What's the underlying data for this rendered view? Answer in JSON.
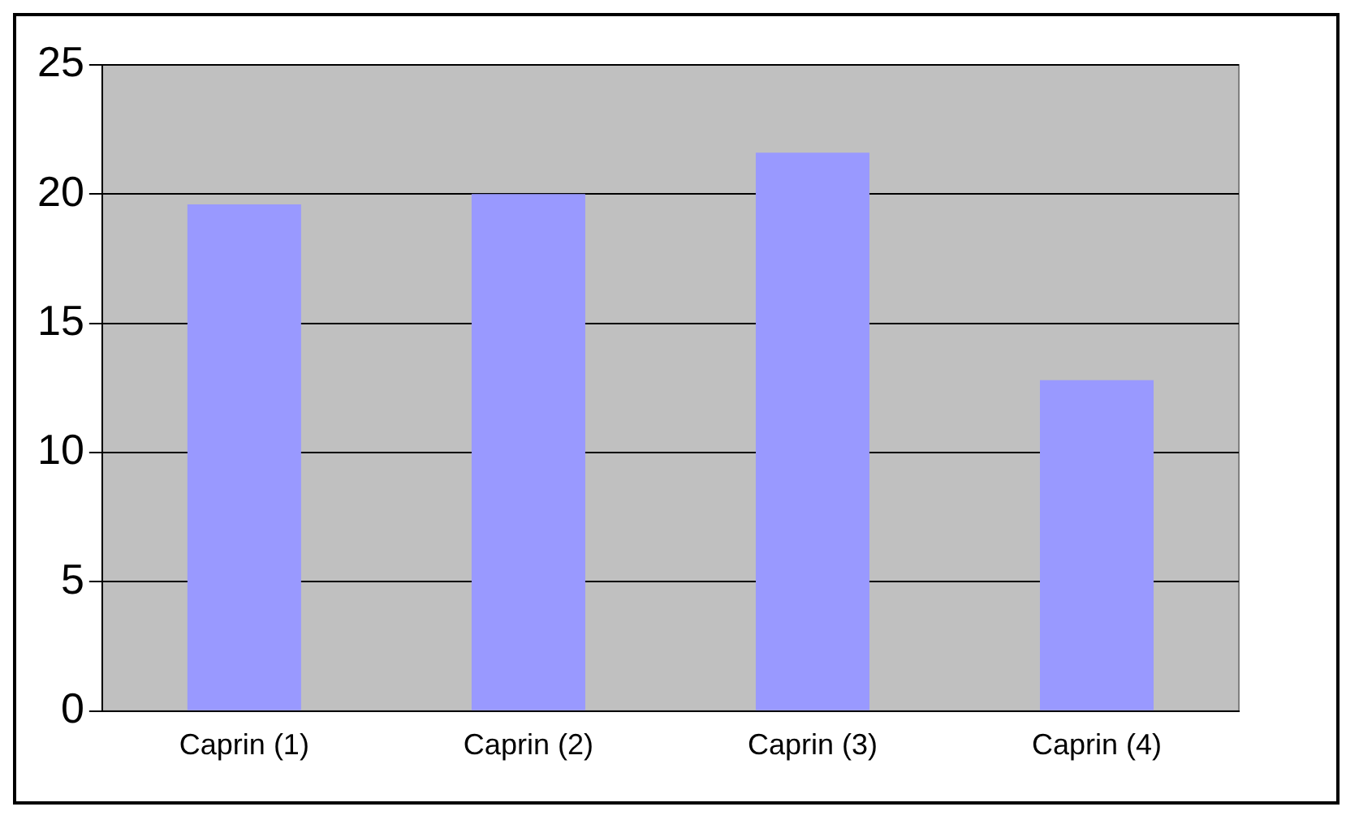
{
  "chart_data": {
    "type": "bar",
    "categories": [
      "Caprin (1)",
      "Caprin (2)",
      "Caprin (3)",
      "Caprin (4)"
    ],
    "values": [
      19.6,
      20,
      21.6,
      12.8
    ],
    "color": "#9999ff",
    "ylim": [
      0,
      25
    ],
    "yticks": [
      0,
      5,
      10,
      15,
      20,
      25
    ],
    "grid": "y",
    "legend": false
  }
}
